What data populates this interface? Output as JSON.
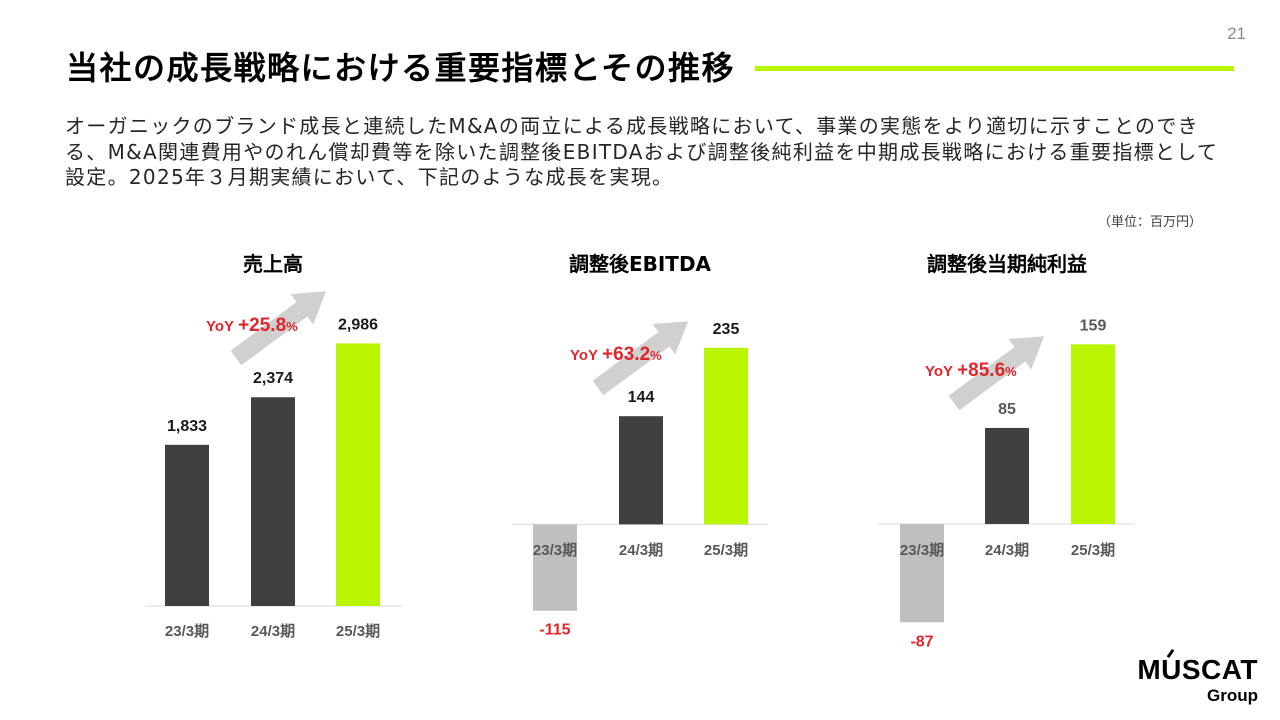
{
  "page_number": "21",
  "title": "当社の成長戦略における重要指標とその推移",
  "lead_text": [
    "オーガニックのブランド成長と連続したM&Aの両立による成長戦略において、事業の実態をより適切に示すことのでき",
    "る、M&A関連費用やのれん償却費等を除いた調整後EBITDAおよび調整後純利益を中期成長戦略における重要指標として",
    "設定。2025年３月期実績において、下記のような成長を実現。"
  ],
  "unit_note": "（単位：百万円）",
  "colors": {
    "accent": "#b9f500",
    "bar_dark": "#404040",
    "bar_negative": "#bfbfbf",
    "negative_label": "#e0262b",
    "yoy_text": "#e0262b",
    "yoy_arrow": "#d0d0d0",
    "baseline": "#d9d9d9"
  },
  "chart_data": [
    {
      "type": "bar",
      "title": "売上高",
      "categories": [
        "23/3期",
        "24/3期",
        "25/3期"
      ],
      "values": [
        1833,
        2374,
        2986
      ],
      "bar_colors": [
        "#404040",
        "#404040",
        "#b9f500"
      ],
      "label_color": "#1a1a1a",
      "ylim": [
        0,
        3400
      ],
      "grid": false,
      "yoy": {
        "prefix": "YoY",
        "value": "+25.8",
        "unit": "%"
      }
    },
    {
      "type": "bar",
      "title": "調整後EBITDA",
      "categories": [
        "23/3期",
        "24/3期",
        "25/3期"
      ],
      "values": [
        -115,
        144,
        235
      ],
      "bar_colors": [
        "#bfbfbf",
        "#404040",
        "#b9f500"
      ],
      "label_color": "#1a1a1a",
      "ylim": [
        -150,
        300
      ],
      "grid": false,
      "yoy": {
        "prefix": "YoY",
        "value": "+63.2",
        "unit": "%"
      }
    },
    {
      "type": "bar",
      "title": "調整後当期純利益",
      "categories": [
        "23/3期",
        "24/3期",
        "25/3期"
      ],
      "values": [
        -87,
        85,
        159
      ],
      "bar_colors": [
        "#bfbfbf",
        "#404040",
        "#b9f500"
      ],
      "label_color": "#595959",
      "ylim": [
        -100,
        200
      ],
      "grid": false,
      "yoy": {
        "prefix": "YoY",
        "value": "+85.6",
        "unit": "%"
      }
    }
  ],
  "logo": {
    "wordmark": "MUSCAT",
    "sub": "Group"
  }
}
